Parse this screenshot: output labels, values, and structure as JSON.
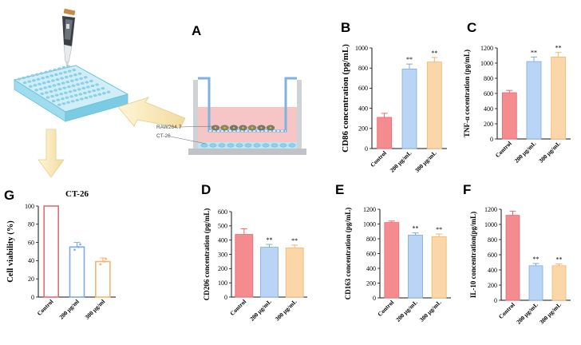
{
  "figure": {
    "panel_labels": [
      "A",
      "B",
      "C",
      "D",
      "E",
      "F",
      "G"
    ],
    "illustration": {
      "upper_cell_label": "RAW264.7",
      "lower_cell_label": "CT-26",
      "icons": [
        "pipette-icon",
        "well-plate-icon",
        "transwell-icon",
        "arrow-icon"
      ]
    },
    "colors": {
      "control": "#f48b8f",
      "dose200": "#b9d4f5",
      "dose300": "#fbd6a8",
      "control_edge": "#e86a70",
      "dose200_edge": "#7fa9e0",
      "dose300_edge": "#f3b46b"
    }
  },
  "chart_data": [
    {
      "panel": "B",
      "type": "bar",
      "ylabel": "CD86 concentration (pg/mL)",
      "categories": [
        "Control",
        "200 μg/mL",
        "300 μg/mL"
      ],
      "values": [
        310,
        790,
        860
      ],
      "errors": [
        40,
        50,
        45
      ],
      "significance": [
        "",
        "**",
        "**"
      ],
      "ylim": [
        0,
        1000
      ],
      "yticks": [
        0,
        200,
        400,
        600,
        800,
        1000
      ]
    },
    {
      "panel": "C",
      "type": "bar",
      "ylabel": "TNF-α cocentration (pg/mL)",
      "categories": [
        "Control",
        "200 μg/mL",
        "300 μg/mL"
      ],
      "values": [
        610,
        1020,
        1080
      ],
      "errors": [
        30,
        60,
        60
      ],
      "significance": [
        "",
        "**",
        "**"
      ],
      "ylim": [
        0,
        1200
      ],
      "yticks": [
        0,
        200,
        400,
        600,
        800,
        1000,
        1200
      ]
    },
    {
      "panel": "D",
      "type": "bar",
      "ylabel": "CD206 concentration (pg/mL)",
      "categories": [
        "Control",
        "200 μg/mL",
        "300 μg/mL"
      ],
      "values": [
        440,
        350,
        345
      ],
      "errors": [
        40,
        20,
        20
      ],
      "significance": [
        "",
        "**",
        "**"
      ],
      "ylim": [
        0,
        600
      ],
      "yticks": [
        0,
        100,
        200,
        300,
        400,
        500,
        600
      ]
    },
    {
      "panel": "E",
      "type": "bar",
      "ylabel": "CD163 concentration (pg/mL)",
      "categories": [
        "Control",
        "200 μg/mL",
        "300 μg/mL"
      ],
      "values": [
        1020,
        850,
        830
      ],
      "errors": [
        20,
        30,
        35
      ],
      "significance": [
        "",
        "**",
        "**"
      ],
      "ylim": [
        0,
        1200
      ],
      "yticks": [
        0,
        200,
        400,
        600,
        800,
        1000,
        1200
      ]
    },
    {
      "panel": "F",
      "type": "bar",
      "ylabel": "IL-10 concentration(pg/mL)",
      "categories": [
        "Control",
        "200 μg/mL",
        "300 μg/mL"
      ],
      "values": [
        1120,
        455,
        455
      ],
      "errors": [
        55,
        30,
        25
      ],
      "significance": [
        "",
        "**",
        "**"
      ],
      "ylim": [
        0,
        1200
      ],
      "yticks": [
        0,
        200,
        400,
        600,
        800,
        1000,
        1200
      ]
    },
    {
      "panel": "G",
      "type": "bar",
      "title": "CT-26",
      "ylabel": "Cell viability (%)",
      "categories": [
        "Control",
        "200 μg/ml",
        "300 μg/ml"
      ],
      "values": [
        100,
        55,
        39
      ],
      "errors": [
        0,
        5,
        4
      ],
      "significance": [
        "",
        "",
        ""
      ],
      "ylim": [
        0,
        100
      ],
      "yticks": [
        0,
        20,
        40,
        60,
        80,
        100
      ],
      "hollow": true
    }
  ]
}
